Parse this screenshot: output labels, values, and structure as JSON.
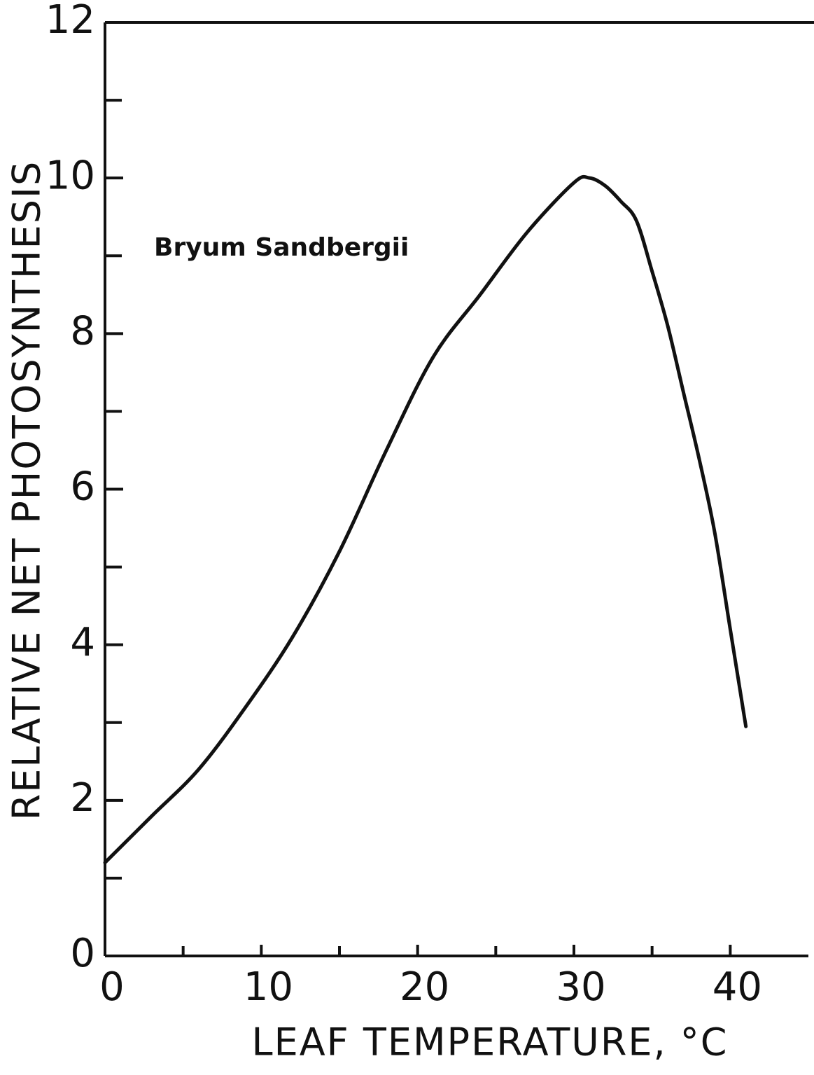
{
  "chart_data": {
    "type": "line",
    "annotation": "Bryum Sandbergii",
    "xlabel": "LEAF TEMPERATURE, °C",
    "ylabel": "RELATIVE NET PHOTOSYNTHESIS",
    "xlim": [
      0,
      45
    ],
    "ylim": [
      0,
      12
    ],
    "xticks": [
      0,
      10,
      20,
      30,
      40
    ],
    "yticks": [
      0,
      2,
      4,
      6,
      8,
      10,
      12
    ],
    "xminorticks": [
      5,
      15,
      25,
      35
    ],
    "yminorticks": [
      1,
      3,
      5,
      7,
      9,
      11
    ],
    "series": [
      {
        "color": "#111111",
        "x": [
          0,
          3,
          6,
          9,
          12,
          15,
          18,
          21,
          24,
          27,
          30,
          31,
          32,
          33,
          34,
          35,
          36,
          37,
          38,
          39,
          40,
          41
        ],
        "values": [
          1.2,
          1.8,
          2.4,
          3.2,
          4.1,
          5.2,
          6.5,
          7.7,
          8.5,
          9.3,
          9.94,
          10.0,
          9.9,
          9.7,
          9.45,
          8.8,
          8.1,
          7.25,
          6.4,
          5.45,
          4.2,
          2.95
        ]
      }
    ]
  }
}
